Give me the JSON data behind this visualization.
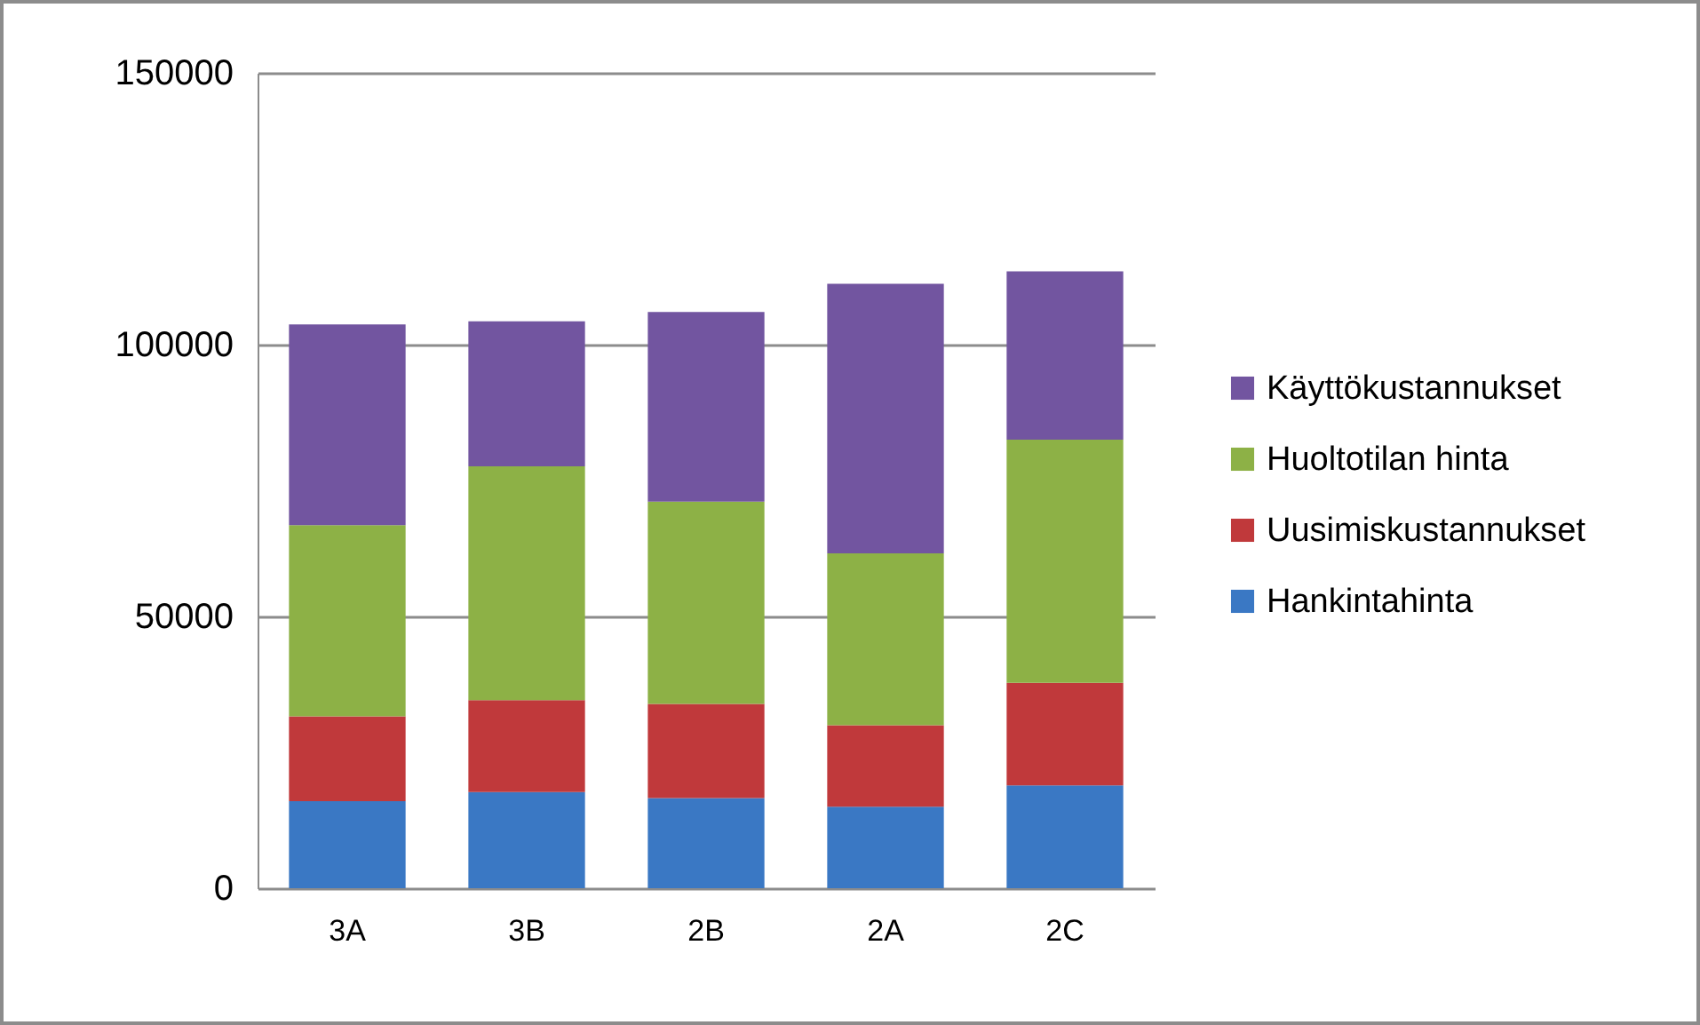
{
  "chart_data": {
    "type": "bar",
    "stacked": true,
    "categories": [
      "3A",
      "3B",
      "2B",
      "2A",
      "2C"
    ],
    "series": [
      {
        "name": "Hankintahinta",
        "color": "#3a78c4",
        "values": [
          16000,
          17700,
          16600,
          15000,
          18900
        ]
      },
      {
        "name": "Uusimiskustannukset",
        "color": "#c0393b",
        "values": [
          15600,
          16900,
          17300,
          15000,
          18900
        ]
      },
      {
        "name": "Huoltotilan hinta",
        "color": "#8db146",
        "values": [
          35200,
          43000,
          37200,
          31600,
          44700
        ]
      },
      {
        "name": "Käyttökustannukset",
        "color": "#7255a0",
        "values": [
          36900,
          26700,
          34900,
          49600,
          31000
        ]
      }
    ],
    "ylim": [
      0,
      150000
    ],
    "yticks": [
      0,
      50000,
      100000,
      150000
    ],
    "grid": "y",
    "legend": "right"
  }
}
